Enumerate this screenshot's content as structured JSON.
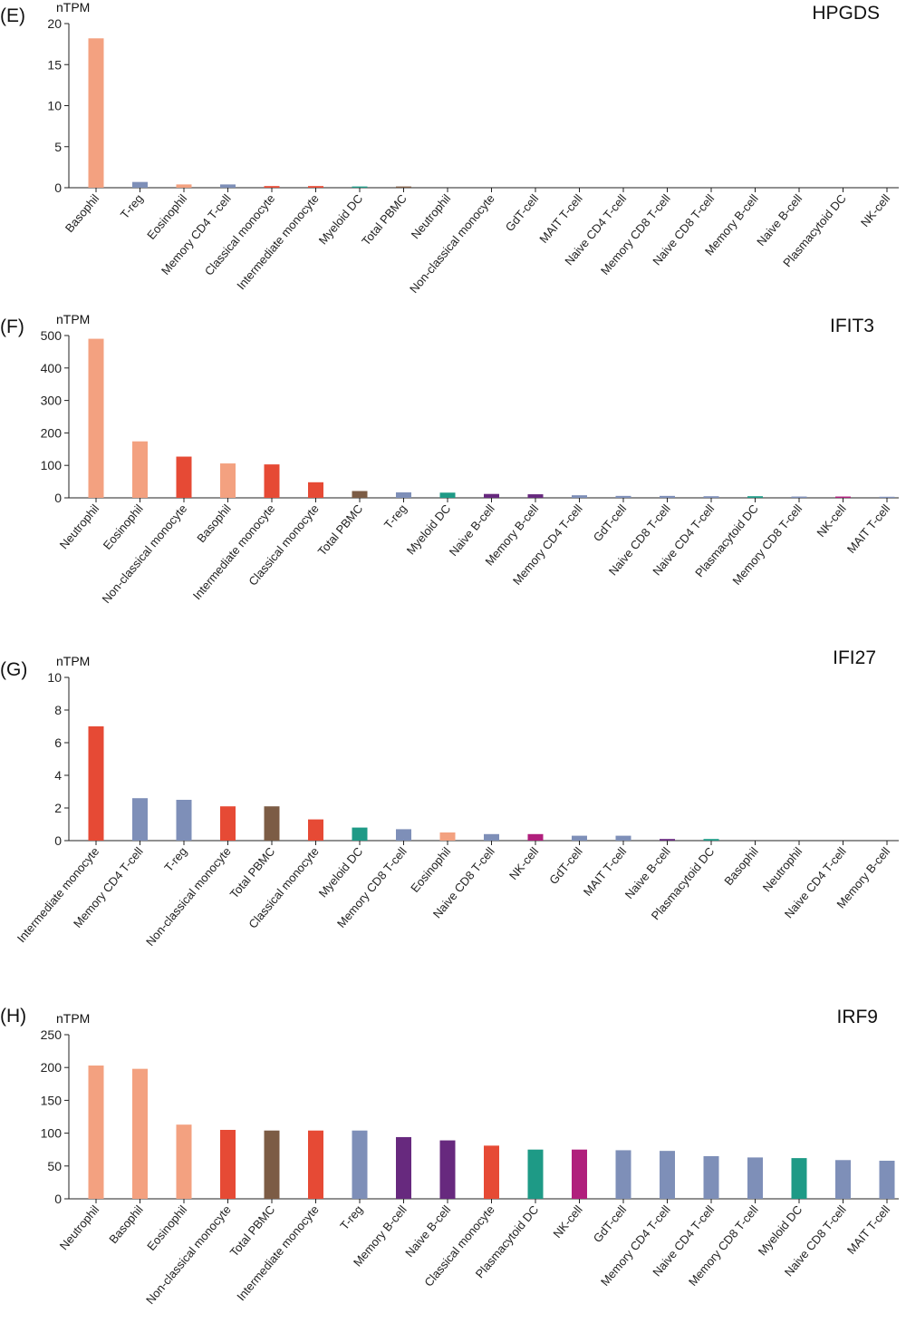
{
  "figure": {
    "panels": [
      {
        "letter": "(E)",
        "gene": "HPGDS"
      },
      {
        "letter": "(F)",
        "gene": "IFIT3"
      },
      {
        "letter": "(G)",
        "gene": "IFI27"
      },
      {
        "letter": "(H)",
        "gene": "IRF9"
      }
    ]
  },
  "colors": {
    "granulocyte": "#f3a180",
    "t_cell": "#7e8fb8",
    "monocyte": "#e64a35",
    "pbmc": "#7c5c45",
    "dendritic": "#1e9a86",
    "b_cell": "#67297e",
    "nk_cell": "#b01f7c"
  },
  "chart_data": [
    {
      "type": "bar",
      "title": "HPGDS",
      "panel": "(E)",
      "ylabel": "nTPM",
      "ylim": [
        0,
        20
      ],
      "yticks": [
        0,
        5,
        10,
        15,
        20
      ],
      "grid": false,
      "categories": [
        "Basophil",
        "T-reg",
        "Eosinophil",
        "Memory CD4 T-cell",
        "Classical monocyte",
        "Intermediate monocyte",
        "Myeloid DC",
        "Total PBMC",
        "Neutrophil",
        "Non-classical monocyte",
        "GdT-cell",
        "MAIT T-cell",
        "Naive CD4 T-cell",
        "Memory CD8 T-cell",
        "Naive CD8 T-cell",
        "Memory B-cell",
        "Naive B-cell",
        "Plasmacytoid DC",
        "NK-cell"
      ],
      "values": [
        18.2,
        0.7,
        0.4,
        0.4,
        0.2,
        0.2,
        0.15,
        0.15,
        0,
        0,
        0,
        0,
        0,
        0,
        0,
        0,
        0,
        0,
        0
      ],
      "bar_colors": [
        "#f3a180",
        "#7e8fb8",
        "#f3a180",
        "#7e8fb8",
        "#e64a35",
        "#e64a35",
        "#1e9a86",
        "#7c5c45",
        "#f3a180",
        "#e64a35",
        "#7e8fb8",
        "#7e8fb8",
        "#7e8fb8",
        "#7e8fb8",
        "#7e8fb8",
        "#67297e",
        "#67297e",
        "#1e9a86",
        "#b01f7c"
      ]
    },
    {
      "type": "bar",
      "title": "IFIT3",
      "panel": "(F)",
      "ylabel": "nTPM",
      "ylim": [
        0,
        500
      ],
      "yticks": [
        0,
        100,
        200,
        300,
        400,
        500
      ],
      "grid": false,
      "categories": [
        "Neutrophil",
        "Eosinophil",
        "Non-classical monocyte",
        "Basophil",
        "Intermediate monocyte",
        "Classical monocyte",
        "Total PBMC",
        "T-reg",
        "Myeloid DC",
        "Naive B-cell",
        "Memory B-cell",
        "Memory CD4 T-cell",
        "GdT-cell",
        "Naive CD8 T-cell",
        "Naive CD4 T-cell",
        "Plasmacytoid DC",
        "Memory CD8 T-cell",
        "NK-cell",
        "MAIT T-cell"
      ],
      "values": [
        490,
        174,
        127,
        106,
        103,
        48,
        21,
        17,
        16,
        12,
        11,
        8,
        6,
        6,
        5,
        5,
        4,
        4,
        3
      ],
      "bar_colors": [
        "#f3a180",
        "#f3a180",
        "#e64a35",
        "#f3a180",
        "#e64a35",
        "#e64a35",
        "#7c5c45",
        "#7e8fb8",
        "#1e9a86",
        "#67297e",
        "#67297e",
        "#7e8fb8",
        "#7e8fb8",
        "#7e8fb8",
        "#7e8fb8",
        "#1e9a86",
        "#7e8fb8",
        "#b01f7c",
        "#7e8fb8"
      ]
    },
    {
      "type": "bar",
      "title": "IFI27",
      "panel": "(G)",
      "ylabel": "nTPM",
      "ylim": [
        0,
        10
      ],
      "yticks": [
        0,
        2,
        4,
        6,
        8,
        10
      ],
      "grid": false,
      "categories": [
        "Intermediate monocyte",
        "Memory CD4 T-cell",
        "T-reg",
        "Non-classical monocyte",
        "Total PBMC",
        "Classical monocyte",
        "Myeloid DC",
        "Memory CD8 T-cell",
        "Eosinophil",
        "Naive CD8 T-cell",
        "NK-cell",
        "GdT-cell",
        "MAIT T-cell",
        "Naive B-cell",
        "Plasmacytoid DC",
        "Basophil",
        "Neutrophil",
        "Naive CD4 T-cell",
        "Memory B-cell"
      ],
      "values": [
        7.0,
        2.6,
        2.5,
        2.1,
        2.1,
        1.3,
        0.8,
        0.7,
        0.5,
        0.4,
        0.4,
        0.3,
        0.3,
        0.1,
        0.1,
        0,
        0,
        0,
        0
      ],
      "bar_colors": [
        "#e64a35",
        "#7e8fb8",
        "#7e8fb8",
        "#e64a35",
        "#7c5c45",
        "#e64a35",
        "#1e9a86",
        "#7e8fb8",
        "#f3a180",
        "#7e8fb8",
        "#b01f7c",
        "#7e8fb8",
        "#7e8fb8",
        "#67297e",
        "#1e9a86",
        "#f3a180",
        "#f3a180",
        "#7e8fb8",
        "#67297e"
      ]
    },
    {
      "type": "bar",
      "title": "IRF9",
      "panel": "(H)",
      "ylabel": "nTPM",
      "ylim": [
        0,
        250
      ],
      "yticks": [
        0,
        50,
        100,
        150,
        200,
        250
      ],
      "grid": false,
      "categories": [
        "Neutrophil",
        "Basophil",
        "Eosinophil",
        "Non-classical monocyte",
        "Total PBMC",
        "Intermediate monocyte",
        "T-reg",
        "Memory B-cell",
        "Naive B-cell",
        "Classical monocyte",
        "Plasmacytoid DC",
        "NK-cell",
        "GdT-cell",
        "Memory CD4 T-cell",
        "Naive CD4 T-cell",
        "Memory CD8 T-cell",
        "Myeloid DC",
        "Naive CD8 T-cell",
        "MAIT T-cell"
      ],
      "values": [
        203,
        198,
        113,
        105,
        104,
        104,
        104,
        94,
        89,
        81,
        75,
        75,
        74,
        73,
        65,
        63,
        62,
        59,
        58
      ],
      "bar_colors": [
        "#f3a180",
        "#f3a180",
        "#f3a180",
        "#e64a35",
        "#7c5c45",
        "#e64a35",
        "#7e8fb8",
        "#67297e",
        "#67297e",
        "#e64a35",
        "#1e9a86",
        "#b01f7c",
        "#7e8fb8",
        "#7e8fb8",
        "#7e8fb8",
        "#7e8fb8",
        "#1e9a86",
        "#7e8fb8",
        "#7e8fb8"
      ]
    }
  ]
}
